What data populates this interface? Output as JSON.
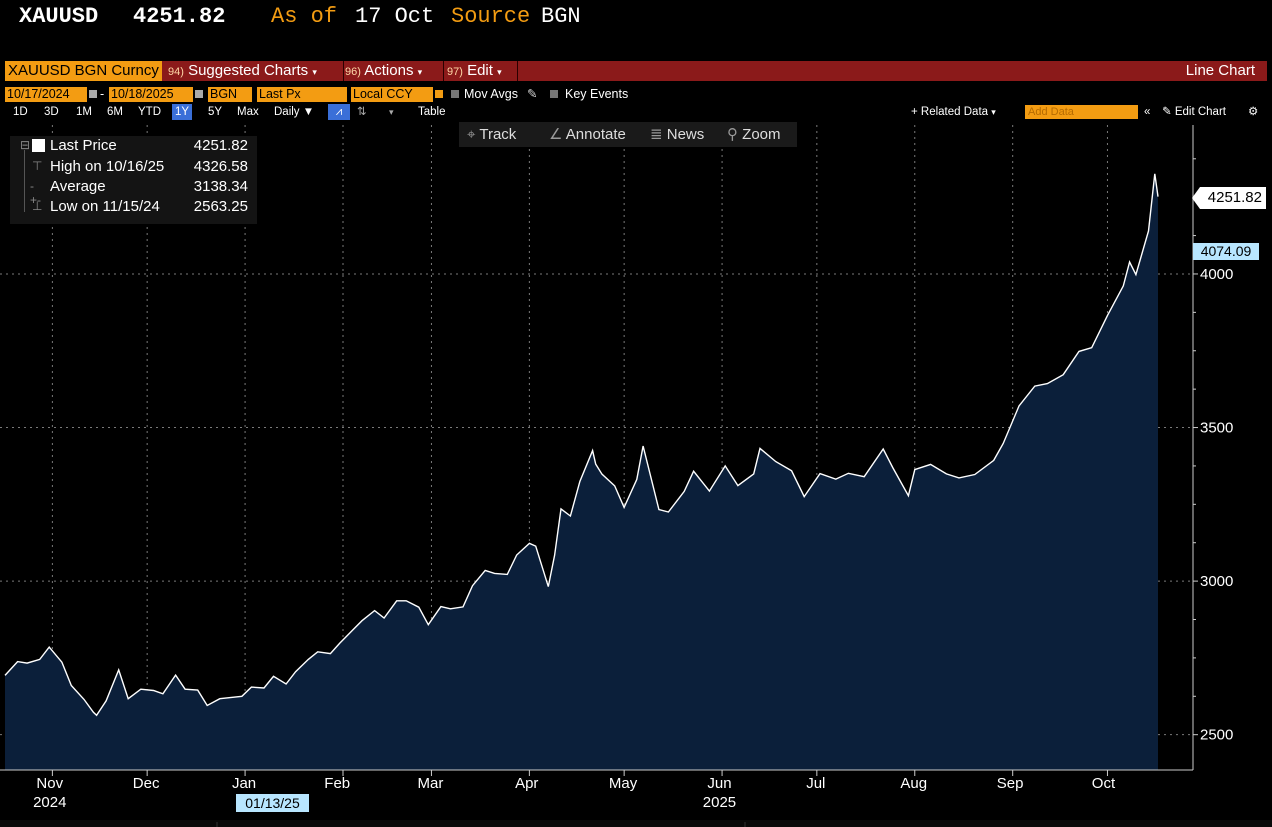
{
  "header": {
    "ticker": "XAUUSD",
    "price": "4251.82",
    "as_of_label": "As of",
    "as_of_date": "17 Oct",
    "source_label": "Source",
    "source": "BGN"
  },
  "actionbar": {
    "security": "XAUUSD BGN Curncy",
    "suggested_num": "94)",
    "suggested_label": "Suggested Charts",
    "actions_num": "96)",
    "actions_label": "Actions",
    "edit_num": "97)",
    "edit_label": "Edit",
    "chart_type": "Line Chart"
  },
  "params": {
    "start_date": "10/17/2024",
    "end_date": "10/18/2025",
    "source": "BGN",
    "field": "Last Px",
    "currency": "Local CCY",
    "mov_avgs": "Mov Avgs",
    "key_events": "Key Events"
  },
  "periods": {
    "items": [
      "1D",
      "3D",
      "1M",
      "6M",
      "YTD",
      "1Y",
      "5Y",
      "Max"
    ],
    "selected": "1Y",
    "frequency": "Daily",
    "table": "Table",
    "related_data": "+ Related Data",
    "add_data_placeholder": "Add Data",
    "edit_chart": "Edit Chart"
  },
  "toolbar": {
    "track": "Track",
    "annotate": "Annotate",
    "news": "News",
    "zoom": "Zoom"
  },
  "legend": {
    "last_label": "Last Price",
    "last_value": "4251.82",
    "high_label": "High on 10/16/25",
    "high_value": "4326.58",
    "avg_label": "Average",
    "avg_value": "3138.34",
    "low_label": "Low on 11/15/24",
    "low_value": "2563.25"
  },
  "tags": {
    "last": "4251.82",
    "ref": "4074.09",
    "highlight_date": "01/13/25"
  },
  "colors": {
    "accent_orange": "#f39c12",
    "action_red": "#8b1a1a",
    "area_fill": "#0b1f3a",
    "line": "#ffffff",
    "highlight_blue": "#b8e6ff"
  },
  "chart_data": {
    "type": "area",
    "title": "",
    "xlabel": "",
    "ylabel": "",
    "ylim": [
      2385,
      4485
    ],
    "yticks": [
      2500,
      3000,
      3500,
      4000
    ],
    "ytick_labels": [
      "2500",
      "3000",
      "3500",
      "4000"
    ],
    "month_labels": [
      "Nov",
      "Dec",
      "Jan",
      "Feb",
      "Mar",
      "Apr",
      "May",
      "Jun",
      "Jul",
      "Aug",
      "Sep",
      "Oct"
    ],
    "year_labels": [
      {
        "label": "2024",
        "month": "Nov"
      },
      {
        "label": "2025",
        "month": "Jun"
      }
    ],
    "x_start": "2024-10-17",
    "x_end": "2025-10-17",
    "series": [
      {
        "x": [
          "2024-10-17",
          "2024-10-21",
          "2024-10-24",
          "2024-10-28",
          "2024-10-31",
          "2024-11-04",
          "2024-11-07",
          "2024-11-11",
          "2024-11-14",
          "2024-11-15",
          "2024-11-18",
          "2024-11-22",
          "2024-11-25",
          "2024-11-29",
          "2024-12-03",
          "2024-12-06",
          "2024-12-10",
          "2024-12-13",
          "2024-12-17",
          "2024-12-20",
          "2024-12-24",
          "2024-12-31",
          "2025-01-03",
          "2025-01-07",
          "2025-01-10",
          "2025-01-14",
          "2025-01-17",
          "2025-01-21",
          "2025-01-24",
          "2025-01-28",
          "2025-01-31",
          "2025-02-04",
          "2025-02-07",
          "2025-02-11",
          "2025-02-14",
          "2025-02-18",
          "2025-02-21",
          "2025-02-25",
          "2025-02-28",
          "2025-03-04",
          "2025-03-07",
          "2025-03-11",
          "2025-03-14",
          "2025-03-18",
          "2025-03-21",
          "2025-03-25",
          "2025-03-28",
          "2025-04-01",
          "2025-04-03",
          "2025-04-07",
          "2025-04-09",
          "2025-04-11",
          "2025-04-14",
          "2025-04-17",
          "2025-04-21",
          "2025-04-22",
          "2025-04-24",
          "2025-04-28",
          "2025-05-01",
          "2025-05-05",
          "2025-05-07",
          "2025-05-12",
          "2025-05-15",
          "2025-05-20",
          "2025-05-23",
          "2025-05-28",
          "2025-06-02",
          "2025-06-06",
          "2025-06-11",
          "2025-06-13",
          "2025-06-18",
          "2025-06-23",
          "2025-06-27",
          "2025-07-02",
          "2025-07-07",
          "2025-07-11",
          "2025-07-16",
          "2025-07-22",
          "2025-07-25",
          "2025-07-30",
          "2025-08-01",
          "2025-08-06",
          "2025-08-11",
          "2025-08-15",
          "2025-08-20",
          "2025-08-26",
          "2025-08-29",
          "2025-09-03",
          "2025-09-08",
          "2025-09-12",
          "2025-09-17",
          "2025-09-22",
          "2025-09-26",
          "2025-10-01",
          "2025-10-06",
          "2025-10-08",
          "2025-10-10",
          "2025-10-14",
          "2025-10-16",
          "2025-10-17"
        ],
        "y": [
          2693,
          2738,
          2733,
          2745,
          2785,
          2736,
          2660,
          2615,
          2573,
          2563,
          2610,
          2711,
          2617,
          2648,
          2644,
          2633,
          2694,
          2648,
          2645,
          2595,
          2617,
          2625,
          2655,
          2652,
          2690,
          2665,
          2705,
          2745,
          2770,
          2764,
          2798,
          2840,
          2871,
          2904,
          2880,
          2936,
          2936,
          2915,
          2858,
          2917,
          2910,
          2916,
          2985,
          3035,
          3025,
          3022,
          3085,
          3123,
          3114,
          2982,
          3084,
          3235,
          3212,
          3325,
          3425,
          3381,
          3348,
          3310,
          3240,
          3331,
          3440,
          3233,
          3225,
          3292,
          3358,
          3293,
          3375,
          3311,
          3349,
          3432,
          3389,
          3359,
          3275,
          3350,
          3332,
          3351,
          3340,
          3430,
          3370,
          3278,
          3363,
          3380,
          3349,
          3336,
          3347,
          3393,
          3448,
          3570,
          3635,
          3643,
          3672,
          3748,
          3760,
          3865,
          3961,
          4039,
          3998,
          4140,
          4326,
          4252
        ]
      }
    ]
  }
}
